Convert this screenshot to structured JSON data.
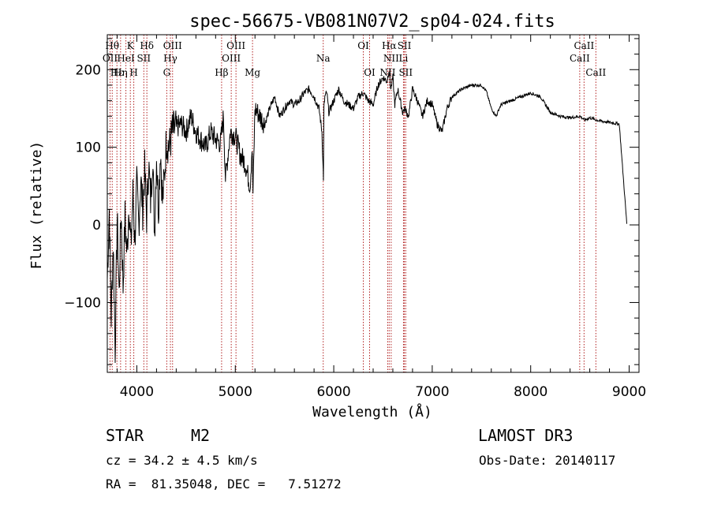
{
  "chart_data": {
    "type": "line",
    "title": "spec-56675-VB081N07V2_sp04-024.fits",
    "xlabel": "Wavelength (Å)",
    "ylabel": "Flux (relative)",
    "xlim": [
      3700,
      9100
    ],
    "ylim": [
      -190,
      245
    ],
    "xticks": [
      {
        "value": 4000,
        "label": "4000"
      },
      {
        "value": 5000,
        "label": "5000"
      },
      {
        "value": 6000,
        "label": "6000"
      },
      {
        "value": 7000,
        "label": "7000"
      },
      {
        "value": 8000,
        "label": "8000"
      },
      {
        "value": 9000,
        "label": "9000"
      }
    ],
    "yticks": [
      {
        "value": -100,
        "label": "−100"
      },
      {
        "value": 0,
        "label": "0"
      },
      {
        "value": 100,
        "label": "100"
      },
      {
        "value": 200,
        "label": "200"
      }
    ],
    "spectral_lines": [
      {
        "wavelength": 3750,
        "label": "Hθ",
        "row": 1
      },
      {
        "wavelength": 3728,
        "label": "OII",
        "row": 2
      },
      {
        "wavelength": 3798,
        "label": "Hε",
        "row": 3
      },
      {
        "wavelength": 3835,
        "label": "Hη",
        "row": 3
      },
      {
        "wavelength": 3889,
        "label": "HeI",
        "row": 2
      },
      {
        "wavelength": 3934,
        "label": "K",
        "row": 1
      },
      {
        "wavelength": 3969,
        "label": "H",
        "row": 3
      },
      {
        "wavelength": 4071,
        "label": "SII",
        "row": 2
      },
      {
        "wavelength": 4102,
        "label": "Hδ",
        "row": 1
      },
      {
        "wavelength": 4304,
        "label": "G",
        "row": 3
      },
      {
        "wavelength": 4341,
        "label": "Hγ",
        "row": 2
      },
      {
        "wavelength": 4363,
        "label": "OIII",
        "row": 1
      },
      {
        "wavelength": 4861,
        "label": "Hβ",
        "row": 3
      },
      {
        "wavelength": 4959,
        "label": "OIII",
        "row": 2
      },
      {
        "wavelength": 5007,
        "label": "OIII",
        "row": 1
      },
      {
        "wavelength": 5175,
        "label": "Mg",
        "row": 3
      },
      {
        "wavelength": 5893,
        "label": "Na",
        "row": 2
      },
      {
        "wavelength": 6300,
        "label": "OI",
        "row": 1
      },
      {
        "wavelength": 6364,
        "label": "OI",
        "row": 3
      },
      {
        "wavelength": 6548,
        "label": "NII",
        "row": 3
      },
      {
        "wavelength": 6563,
        "label": "Hα",
        "row": 1
      },
      {
        "wavelength": 6583,
        "label": "NII",
        "row": 2
      },
      {
        "wavelength": 6708,
        "label": "Li",
        "row": 2
      },
      {
        "wavelength": 6717,
        "label": "SII",
        "row": 1
      },
      {
        "wavelength": 6731,
        "label": "SII",
        "row": 3
      },
      {
        "wavelength": 8498,
        "label": "CaII",
        "row": 2
      },
      {
        "wavelength": 8542,
        "label": "CaII",
        "row": 1
      },
      {
        "wavelength": 8662,
        "label": "CaII",
        "row": 3
      }
    ],
    "spectrum": {
      "wavelength": [
        3700,
        3720,
        3740,
        3760,
        3780,
        3800,
        3820,
        3840,
        3860,
        3880,
        3900,
        3920,
        3940,
        3960,
        3980,
        4000,
        4020,
        4040,
        4060,
        4080,
        4100,
        4120,
        4140,
        4160,
        4180,
        4200,
        4220,
        4240,
        4260,
        4280,
        4300,
        4330,
        4360,
        4400,
        4450,
        4500,
        4550,
        4600,
        4650,
        4700,
        4750,
        4800,
        4850,
        4880,
        4900,
        4950,
        5000,
        5050,
        5100,
        5150,
        5170,
        5180,
        5200,
        5250,
        5300,
        5350,
        5400,
        5450,
        5500,
        5550,
        5600,
        5650,
        5700,
        5750,
        5800,
        5850,
        5880,
        5890,
        5895,
        5900,
        5910,
        5930,
        5950,
        6000,
        6050,
        6100,
        6150,
        6200,
        6250,
        6300,
        6350,
        6400,
        6450,
        6500,
        6540,
        6560,
        6580,
        6600,
        6620,
        6650,
        6700,
        6720,
        6760,
        6800,
        6850,
        6900,
        6950,
        7000,
        7050,
        7100,
        7150,
        7200,
        7300,
        7400,
        7500,
        7550,
        7600,
        7650,
        7680,
        7700,
        7800,
        7900,
        8000,
        8100,
        8150,
        8200,
        8300,
        8400,
        8500,
        8550,
        8600,
        8700,
        8800,
        8900,
        8980,
        9000
      ],
      "flux": [
        -70,
        20,
        -120,
        -20,
        -160,
        10,
        -90,
        20,
        -80,
        10,
        -40,
        30,
        -30,
        40,
        -20,
        50,
        0,
        60,
        20,
        70,
        10,
        80,
        30,
        90,
        -10,
        90,
        20,
        100,
        30,
        60,
        110,
        100,
        120,
        125,
        130,
        120,
        140,
        120,
        110,
        100,
        120,
        110,
        105,
        140,
        60,
        120,
        115,
        90,
        80,
        50,
        100,
        40,
        150,
        140,
        130,
        150,
        165,
        140,
        150,
        160,
        155,
        160,
        170,
        175,
        165,
        150,
        120,
        80,
        60,
        150,
        165,
        170,
        145,
        160,
        175,
        160,
        155,
        150,
        165,
        170,
        160,
        155,
        180,
        190,
        185,
        200,
        175,
        190,
        155,
        175,
        145,
        150,
        140,
        175,
        160,
        140,
        160,
        155,
        130,
        120,
        150,
        165,
        175,
        180,
        180,
        172,
        150,
        140,
        150,
        155,
        160,
        165,
        170,
        165,
        155,
        145,
        140,
        138,
        140,
        135,
        138,
        134,
        132,
        130,
        -5
      ]
    }
  },
  "footer": {
    "object_type": "STAR",
    "subclass": "M2",
    "survey": "LAMOST DR3",
    "redshift": "cz = 34.2 ± 4.5 km/s",
    "obs_date": "Obs-Date: 20140117",
    "coords": "RA =  81.35048, DEC =   7.51272"
  }
}
